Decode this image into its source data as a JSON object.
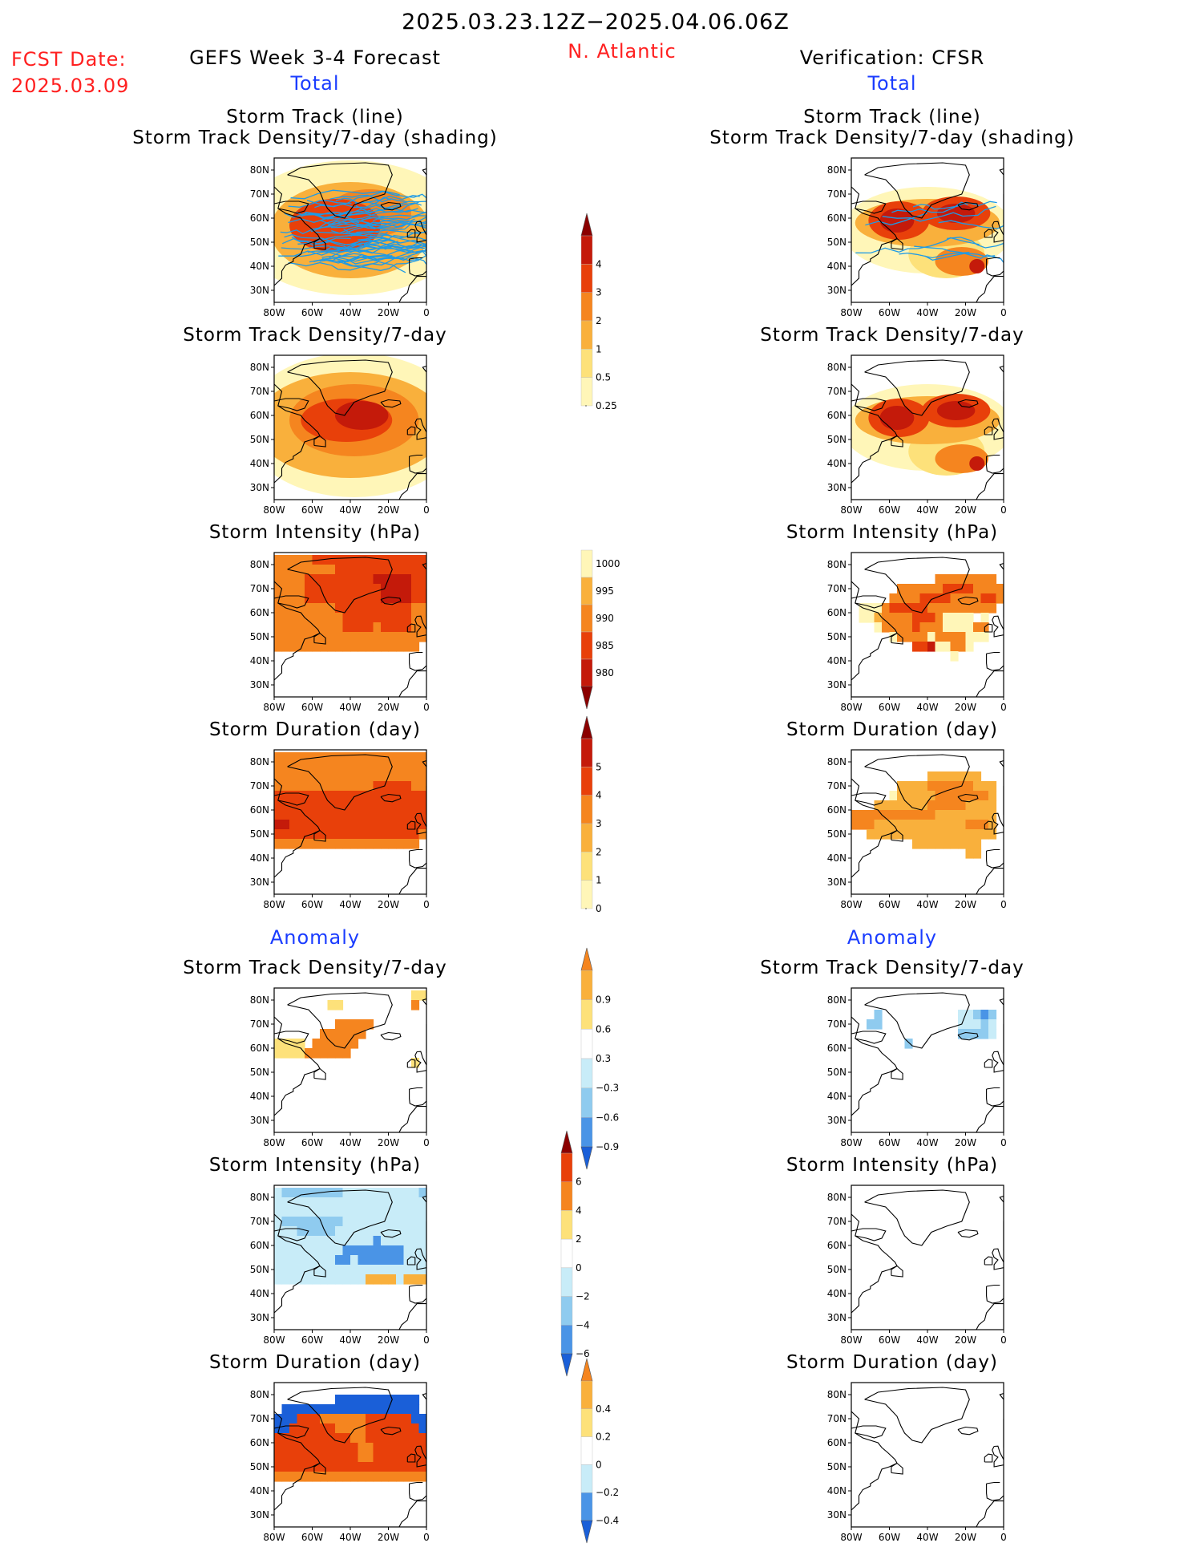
{
  "header": {
    "period": "2025.03.23.12Z−2025.04.06.06Z",
    "fcst_label": "FCST Date:",
    "fcst_date": "2025.03.09",
    "left_title": "GEFS Week 3-4 Forecast",
    "region": "N. Atlantic",
    "right_title": "Verification: CFSR",
    "total_label": "Total",
    "anomaly_label": "Anomaly"
  },
  "axes": {
    "lat_ticks": [
      "80N",
      "70N",
      "60N",
      "50N",
      "40N",
      "30N"
    ],
    "lon_ticks": [
      "80W",
      "60W",
      "40W",
      "20W",
      "0"
    ]
  },
  "titles": {
    "track_line": "Storm Track (line)",
    "track_shading": "Storm Track Density/7-day (shading)",
    "density": "Storm Track Density/7-day",
    "intensity": "Storm Intensity (hPa)",
    "duration": "Storm Duration (day)"
  },
  "colors": {
    "brown": "#8b0000",
    "darkred": "#c41a0a",
    "redorange": "#e8400a",
    "orange": "#f5851f",
    "lightorange": "#f9b03c",
    "yellow": "#fde17a",
    "paleyellow": "#fff6b8",
    "paleblue": "#c8ecf8",
    "lightblue": "#8fcbef",
    "midblue": "#4a94e6",
    "blue": "#1a5fd8",
    "darkblue": "#1040c0",
    "track": "#1e9ae6"
  },
  "chart_data": [
    {
      "type": "heatmap",
      "id": "fcst-total-track",
      "column": "GEFS Week 3-4 Forecast",
      "section": "Total",
      "title": "Storm Track (line) / Storm Track Density/7-day (shading)",
      "xlim": [
        -80,
        0
      ],
      "ylim": [
        25,
        85
      ],
      "xlabel": "",
      "ylabel": "",
      "colorbar": "density",
      "blobs": [
        {
          "lon": -48,
          "lat": 57,
          "rx": 24,
          "ry": 11,
          "v": 3.2
        },
        {
          "lon": -30,
          "lat": 62,
          "rx": 22,
          "ry": 10,
          "v": 2.5
        },
        {
          "lon": -40,
          "lat": 55,
          "rx": 42,
          "ry": 20,
          "v": 1.1
        },
        {
          "lon": -40,
          "lat": 56,
          "rx": 60,
          "ry": 28,
          "v": 0.3
        }
      ],
      "tracks": true
    },
    {
      "type": "heatmap",
      "id": "fcst-total-density",
      "column": "GEFS Week 3-4 Forecast",
      "section": "Total",
      "title": "Storm Track Density/7-day",
      "xlim": [
        -80,
        0
      ],
      "ylim": [
        25,
        85
      ],
      "colorbar": "density",
      "blobs": [
        {
          "lon": -34,
          "lat": 60,
          "rx": 14,
          "ry": 6,
          "v": 4.4
        },
        {
          "lon": -42,
          "lat": 58,
          "rx": 24,
          "ry": 9,
          "v": 3.4
        },
        {
          "lon": -38,
          "lat": 58,
          "rx": 34,
          "ry": 15,
          "v": 2.1
        },
        {
          "lon": -40,
          "lat": 56,
          "rx": 50,
          "ry": 22,
          "v": 1.1
        },
        {
          "lon": -38,
          "lat": 56,
          "rx": 58,
          "ry": 30,
          "v": 0.4
        }
      ]
    },
    {
      "type": "heatmap",
      "id": "fcst-total-intensity",
      "column": "GEFS Week 3-4 Forecast",
      "section": "Total",
      "title": "Storm Intensity (hPa)",
      "xlim": [
        -80,
        0
      ],
      "ylim": [
        25,
        85
      ],
      "colorbar": "intensity",
      "grid": {
        "lat0": 82,
        "dlat": 4,
        "lon0": -78,
        "dlon": 4,
        "rows": [
          "33333444444444444444",
          "33333333444444444444",
          "33334444444445555544",
          "33334444444444555544",
          "33334444444444555544",
          "33333333444444444433",
          "33333333344444444433",
          "33333333344443444433",
          "33333333333333333333",
          "33333333333333333330",
          "00000000000000000000",
          "00000000000000000000"
        ]
      }
    },
    {
      "type": "heatmap",
      "id": "fcst-total-duration",
      "column": "GEFS Week 3-4 Forecast",
      "section": "Total",
      "title": "Storm Duration (day)",
      "xlim": [
        -80,
        0
      ],
      "ylim": [
        25,
        85
      ],
      "colorbar": "duration",
      "grid": {
        "lat0": 82,
        "dlat": 4,
        "lon0": -78,
        "dlon": 4,
        "rows": [
          "33333333333333333333",
          "33333333333333333333",
          "33333333333333333333",
          "33333333333334444433",
          "44444444444444444444",
          "44444444444444444444",
          "44444444444444444444",
          "55444444444444444444",
          "44444444444444444443",
          "33333333333333333330",
          "00000000000000000000",
          "00000000000000000000"
        ]
      }
    },
    {
      "type": "heatmap",
      "id": "cfsr-total-track",
      "column": "Verification: CFSR",
      "section": "Total",
      "title": "Storm Track (line) / Storm Track Density/7-day (shading)",
      "xlim": [
        -80,
        0
      ],
      "ylim": [
        25,
        85
      ],
      "colorbar": "density",
      "blobs": [
        {
          "lon": -56,
          "lat": 59,
          "rx": 9,
          "ry": 5,
          "v": 4.3
        },
        {
          "lon": -25,
          "lat": 62,
          "rx": 10,
          "ry": 4,
          "v": 4.3
        },
        {
          "lon": -14,
          "lat": 40,
          "rx": 4,
          "ry": 3,
          "v": 4.0
        },
        {
          "lon": -55,
          "lat": 59,
          "rx": 16,
          "ry": 8,
          "v": 3.2
        },
        {
          "lon": -25,
          "lat": 62,
          "rx": 18,
          "ry": 7,
          "v": 3.2
        },
        {
          "lon": -22,
          "lat": 42,
          "rx": 14,
          "ry": 6,
          "v": 2.4
        },
        {
          "lon": -40,
          "lat": 58,
          "rx": 38,
          "ry": 10,
          "v": 1.2
        },
        {
          "lon": -30,
          "lat": 45,
          "rx": 20,
          "ry": 10,
          "v": 0.8
        },
        {
          "lon": -40,
          "lat": 55,
          "rx": 45,
          "ry": 18,
          "v": 0.3
        }
      ],
      "tracks": true
    },
    {
      "type": "heatmap",
      "id": "cfsr-total-density",
      "column": "Verification: CFSR",
      "section": "Total",
      "title": "Storm Track Density/7-day",
      "xlim": [
        -80,
        0
      ],
      "ylim": [
        25,
        85
      ],
      "colorbar": "density",
      "blobs": [
        {
          "lon": -56,
          "lat": 59,
          "rx": 9,
          "ry": 5,
          "v": 4.3
        },
        {
          "lon": -25,
          "lat": 62,
          "rx": 10,
          "ry": 4,
          "v": 4.3
        },
        {
          "lon": -14,
          "lat": 40,
          "rx": 4,
          "ry": 3,
          "v": 4.0
        },
        {
          "lon": -55,
          "lat": 59,
          "rx": 16,
          "ry": 8,
          "v": 3.2
        },
        {
          "lon": -25,
          "lat": 62,
          "rx": 18,
          "ry": 7,
          "v": 3.2
        },
        {
          "lon": -22,
          "lat": 42,
          "rx": 14,
          "ry": 6,
          "v": 2.4
        },
        {
          "lon": -40,
          "lat": 58,
          "rx": 38,
          "ry": 10,
          "v": 1.2
        },
        {
          "lon": -30,
          "lat": 45,
          "rx": 20,
          "ry": 10,
          "v": 0.8
        },
        {
          "lon": -40,
          "lat": 55,
          "rx": 45,
          "ry": 18,
          "v": 0.3
        }
      ]
    },
    {
      "type": "heatmap",
      "id": "cfsr-total-intensity",
      "column": "Verification: CFSR",
      "section": "Total",
      "title": "Storm Intensity (hPa)",
      "xlim": [
        -80,
        0
      ],
      "ylim": [
        25,
        85
      ],
      "colorbar": "intensity",
      "grid": {
        "lat0": 82,
        "dlat": 4,
        "lon0": -78,
        "dlon": 4,
        "rows": [
          "00000000000000000000",
          "00000000000000000000",
          "00000000000333333330",
          "00000033333344443333",
          "00000333344443333443",
          "01113444443333333330",
          "01123333444311110100",
          "00013333433311113300",
          "00000133331333311100",
          "00000000445113310000",
          "00000000000001000000",
          "00000000000000000000"
        ]
      }
    },
    {
      "type": "heatmap",
      "id": "cfsr-total-duration",
      "column": "Verification: CFSR",
      "section": "Total",
      "title": "Storm Duration (day)",
      "xlim": [
        -80,
        0
      ],
      "ylim": [
        25,
        85
      ],
      "colorbar": "duration",
      "grid": {
        "lat0": 82,
        "dlat": 4,
        "lon0": -78,
        "dlon": 4,
        "rows": [
          "00000000000000000000",
          "00000000000000000000",
          "00000000002222222000",
          "00000022223333332220",
          "00000122222333333320",
          "00022222223333322220",
          "33333333333222222220",
          "33322222222222233320",
          "00222222222222222220",
          "00000000222222222000",
          "00000000000000022000",
          "00000000000000000000"
        ]
      }
    },
    {
      "type": "heatmap",
      "id": "fcst-anom-density",
      "column": "GEFS Week 3-4 Forecast",
      "section": "Anomaly",
      "title": "Storm Track Density/7-day",
      "xlim": [
        -80,
        0
      ],
      "ylim": [
        25,
        85
      ],
      "colorbar": "anom_density",
      "grid": {
        "lat0": 82,
        "dlat": 4,
        "lon0": -78,
        "dlon": 4,
        "rows": [
          "00000000000000000055",
          "00000005500000000060",
          "00000000000000000000",
          "00000000666660000000",
          "00000066666600000000",
          "55550666666000000000",
          "55556666660000000000",
          "00000000000000000050",
          "00000000000000000000",
          "00000000000000000000",
          "00000000000000000000",
          "00000000000000000000"
        ]
      }
    },
    {
      "type": "heatmap",
      "id": "fcst-anom-intensity",
      "column": "GEFS Week 3-4 Forecast",
      "section": "Anomaly",
      "title": "Storm Intensity (hPa)",
      "xlim": [
        -80,
        0
      ],
      "ylim": [
        25,
        85
      ],
      "colorbar": "anom_intensity",
      "grid": {
        "lat0": 82,
        "dlat": 4,
        "lon0": -78,
        "dlon": 4,
        "rows": [
          "32222222233333333332",
          "33333333333333333333",
          "33333333333333333333",
          "32222222233333333333",
          "33322222333333333333",
          "33333333333331333333",
          "33333333311111111333",
          "33333333113111111333",
          "33333333333333333333",
          "33333333333355553555",
          "00000000000000000000",
          "00000000000000000000"
        ]
      }
    },
    {
      "type": "heatmap",
      "id": "fcst-anom-duration",
      "column": "GEFS Week 3-4 Forecast",
      "section": "Anomaly",
      "title": "Storm Duration (day)",
      "xlim": [
        -80,
        0
      ],
      "ylim": [
        25,
        85
      ],
      "colorbar": "anom_duration",
      "grid": {
        "lat0": 82,
        "dlat": 4,
        "lon0": -78,
        "dlon": 4,
        "rows": [
          "00000000000000000000",
          "00000000111111111110",
          "01111111111111111110",
          "11166655555566666611",
          "11666666555566666661",
          "66666666665566666666",
          "66666666666556666666",
          "66666666666556666666",
          "66666666666666666666",
          "55555555555555555555",
          "00000000000000000000",
          "00000000000000000000"
        ]
      }
    },
    {
      "type": "heatmap",
      "id": "cfsr-anom-density",
      "column": "Verification: CFSR",
      "section": "Anomaly",
      "title": "Storm Track Density/7-day",
      "xlim": [
        -80,
        0
      ],
      "ylim": [
        25,
        85
      ],
      "colorbar": "anom_density",
      "grid": {
        "lat0": 82,
        "dlat": 4,
        "lon0": -78,
        "dlon": 4,
        "rows": [
          "00000000000000000000",
          "00000000000000000000",
          "00020000000000112320",
          "00220000000000111210",
          "00000000000000222210",
          "00000002000000000000",
          "00000000000000000000",
          "00000000000000000000",
          "00000000000000000000",
          "00000000000000000000",
          "00000000000000000000",
          "00000000000000000000"
        ]
      }
    },
    {
      "type": "heatmap",
      "id": "cfsr-anom-intensity",
      "column": "Verification: CFSR",
      "section": "Anomaly",
      "title": "Storm Intensity (hPa)",
      "xlim": [
        -80,
        0
      ],
      "ylim": [
        25,
        85
      ],
      "colorbar": "anom_intensity",
      "grid": {
        "lat0": 82,
        "dlat": 4,
        "lon0": -78,
        "dlon": 4,
        "rows": [
          "00000000000000000000",
          "00000000000000000000",
          "00000000000000000000",
          "00000000000000000000",
          "00000000000000000000",
          "00000000000000000000",
          "00000000000000000000",
          "00000000000000000000",
          "00000000000000000000",
          "00000000000000000000",
          "00000000000000000000",
          "00000000000000000000"
        ]
      }
    },
    {
      "type": "heatmap",
      "id": "cfsr-anom-duration",
      "column": "Verification: CFSR",
      "section": "Anomaly",
      "title": "Storm Duration (day)",
      "xlim": [
        -80,
        0
      ],
      "ylim": [
        25,
        85
      ],
      "colorbar": "anom_duration",
      "grid": {
        "lat0": 82,
        "dlat": 4,
        "lon0": -78,
        "dlon": 4,
        "rows": [
          "00000000000000000000",
          "00000000000000000000",
          "00000000000000000000",
          "00000000000000000000",
          "00000000000000000000",
          "00000000000000000000",
          "00000000000000000000",
          "00000000000000000000",
          "00000000000000000000",
          "00000000000000000000",
          "00000000000000000000",
          "00000000000000000000"
        ]
      }
    }
  ],
  "colorbars": {
    "density": {
      "labels": [
        "4",
        "3",
        "2",
        "1",
        "0.5",
        "0.25"
      ],
      "colors": [
        "#8b0000",
        "#c41a0a",
        "#e8400a",
        "#f5851f",
        "#f9b03c",
        "#fde17a",
        "#fff6b8"
      ],
      "tri_top": true,
      "tri_bottom": false
    },
    "intensity": {
      "labels": [
        "1000",
        "995",
        "990",
        "985",
        "980"
      ],
      "colors": [
        "#fff6b8",
        "#f9b03c",
        "#f5851f",
        "#e8400a",
        "#c41a0a",
        "#8b0000"
      ],
      "tri_top": false,
      "tri_bottom": true
    },
    "duration": {
      "labels": [
        "5",
        "4",
        "3",
        "2",
        "1",
        "0"
      ],
      "colors": [
        "#8b0000",
        "#c41a0a",
        "#e8400a",
        "#f5851f",
        "#f9b03c",
        "#fde17a",
        "#fff6b8"
      ],
      "tri_top": true,
      "tri_bottom": false
    },
    "anom_density": {
      "labels": [
        "0.9",
        "0.6",
        "0.3",
        "−0.3",
        "−0.6",
        "−0.9"
      ],
      "colors": [
        "#f5851f",
        "#f9b03c",
        "#fde17a",
        "#ffffff",
        "#c8ecf8",
        "#8fcbef",
        "#4a94e6",
        "#1a5fd8"
      ],
      "tri_top": true,
      "tri_bottom": true
    },
    "anom_intensity": {
      "labels": [
        "6",
        "4",
        "2",
        "0",
        "−2",
        "−4",
        "−6"
      ],
      "colors": [
        "#8b0000",
        "#e8400a",
        "#f5851f",
        "#fde17a",
        "#ffffff",
        "#c8ecf8",
        "#8fcbef",
        "#4a94e6",
        "#1a5fd8"
      ],
      "tri_top": true,
      "tri_bottom": true
    },
    "anom_duration": {
      "labels": [
        "0.4",
        "0.2",
        "0",
        "−0.2",
        "−0.4"
      ],
      "colors": [
        "#f5851f",
        "#f9b03c",
        "#fde17a",
        "#ffffff",
        "#c8ecf8",
        "#4a94e6",
        "#1a5fd8"
      ],
      "tri_top": true,
      "tri_bottom": true
    }
  }
}
